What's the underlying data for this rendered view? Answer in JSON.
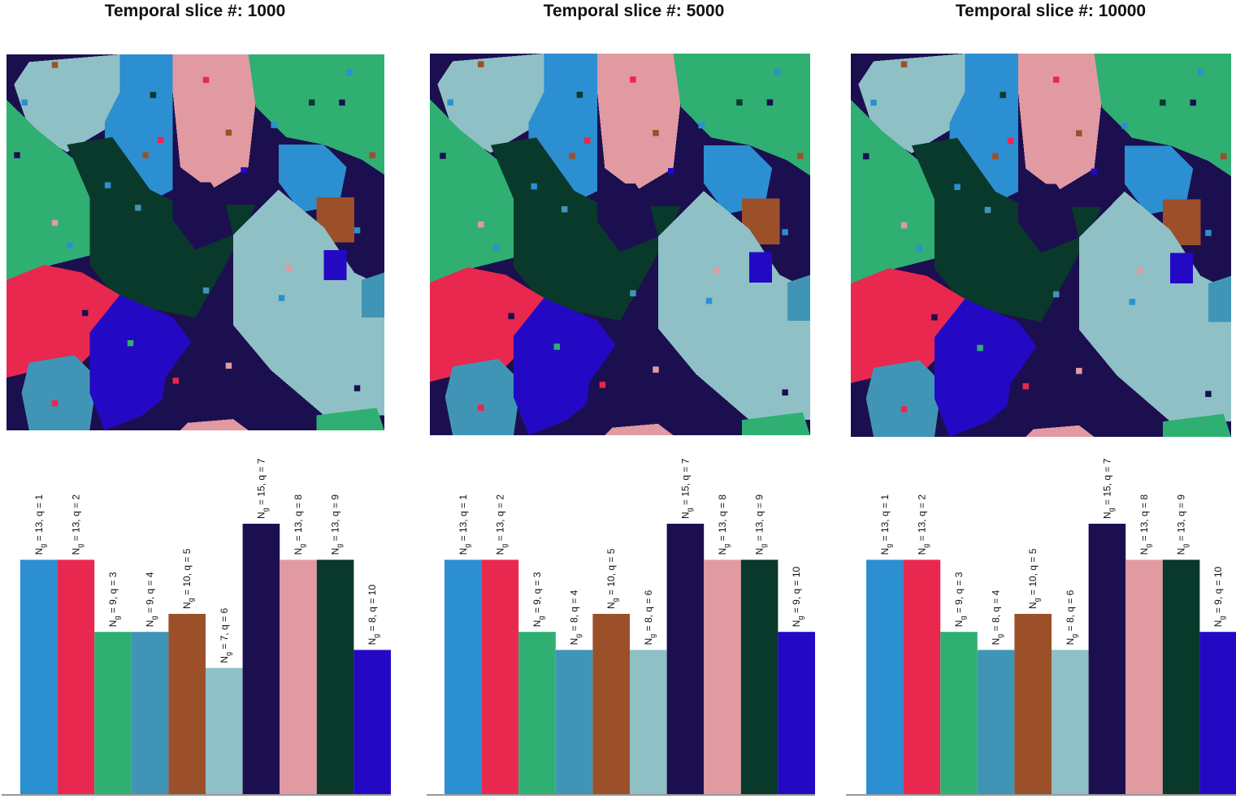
{
  "colors": {
    "q1": "#2b8fd1",
    "q2": "#e8284f",
    "q3": "#2faf72",
    "q4": "#4095b6",
    "q5": "#9c502a",
    "q6": "#8fc0c6",
    "q7": "#1c0f4f",
    "q8": "#e19aa2",
    "q9": "#08392b",
    "q10": "#2309c4"
  },
  "chart_data": [
    {
      "type": "bar",
      "title": "Temporal slice #: 1000",
      "categories": [
        "q = 1",
        "q = 2",
        "q = 3",
        "q = 4",
        "q = 5",
        "q = 6",
        "q = 7",
        "q = 8",
        "q = 9",
        "q = 10"
      ],
      "values": [
        13,
        13,
        9,
        9,
        10,
        7,
        15,
        13,
        13,
        8
      ],
      "labels": [
        "N_g = 13, q = 1",
        "N_g = 13, q = 2",
        "N_g = 9, q = 3",
        "N_g = 9, q = 4",
        "N_g = 10, q = 5",
        "N_g = 7, q = 6",
        "N_g = 15, q = 7",
        "N_g = 13, q = 8",
        "N_g = 13, q = 9",
        "N_g = 8, q = 10"
      ],
      "ylim": [
        0,
        15
      ]
    },
    {
      "type": "bar",
      "title": "Temporal slice #: 5000",
      "categories": [
        "q = 1",
        "q = 2",
        "q = 3",
        "q = 4",
        "q = 5",
        "q = 6",
        "q = 7",
        "q = 8",
        "q = 9",
        "q = 10"
      ],
      "values": [
        13,
        13,
        9,
        8,
        10,
        8,
        15,
        13,
        13,
        9
      ],
      "labels": [
        "N_g = 13, q = 1",
        "N_g = 13, q = 2",
        "N_g = 9, q = 3",
        "N_g = 8, q = 4",
        "N_g = 10, q = 5",
        "N_g = 8, q = 6",
        "N_g = 15, q = 7",
        "N_g = 13, q = 8",
        "N_g = 13, q = 9",
        "N_g = 9, q = 10"
      ],
      "ylim": [
        0,
        15
      ]
    },
    {
      "type": "bar",
      "title": "Temporal slice #: 10000",
      "categories": [
        "q = 1",
        "q = 2",
        "q = 3",
        "q = 4",
        "q = 5",
        "q = 6",
        "q = 7",
        "q = 8",
        "q = 9",
        "q = 10"
      ],
      "values": [
        13,
        13,
        9,
        8,
        10,
        8,
        15,
        13,
        13,
        9
      ],
      "labels": [
        "N_g = 13, q = 1",
        "N_g = 13, q = 2",
        "N_g = 9, q = 3",
        "N_g = 8, q = 4",
        "N_g = 10, q = 5",
        "N_g = 8, q = 6",
        "N_g = 15, q = 7",
        "N_g = 13, q = 8",
        "N_g = 13, q = 9",
        "N_g = 9, q = 10"
      ],
      "ylim": [
        0,
        15
      ]
    }
  ]
}
